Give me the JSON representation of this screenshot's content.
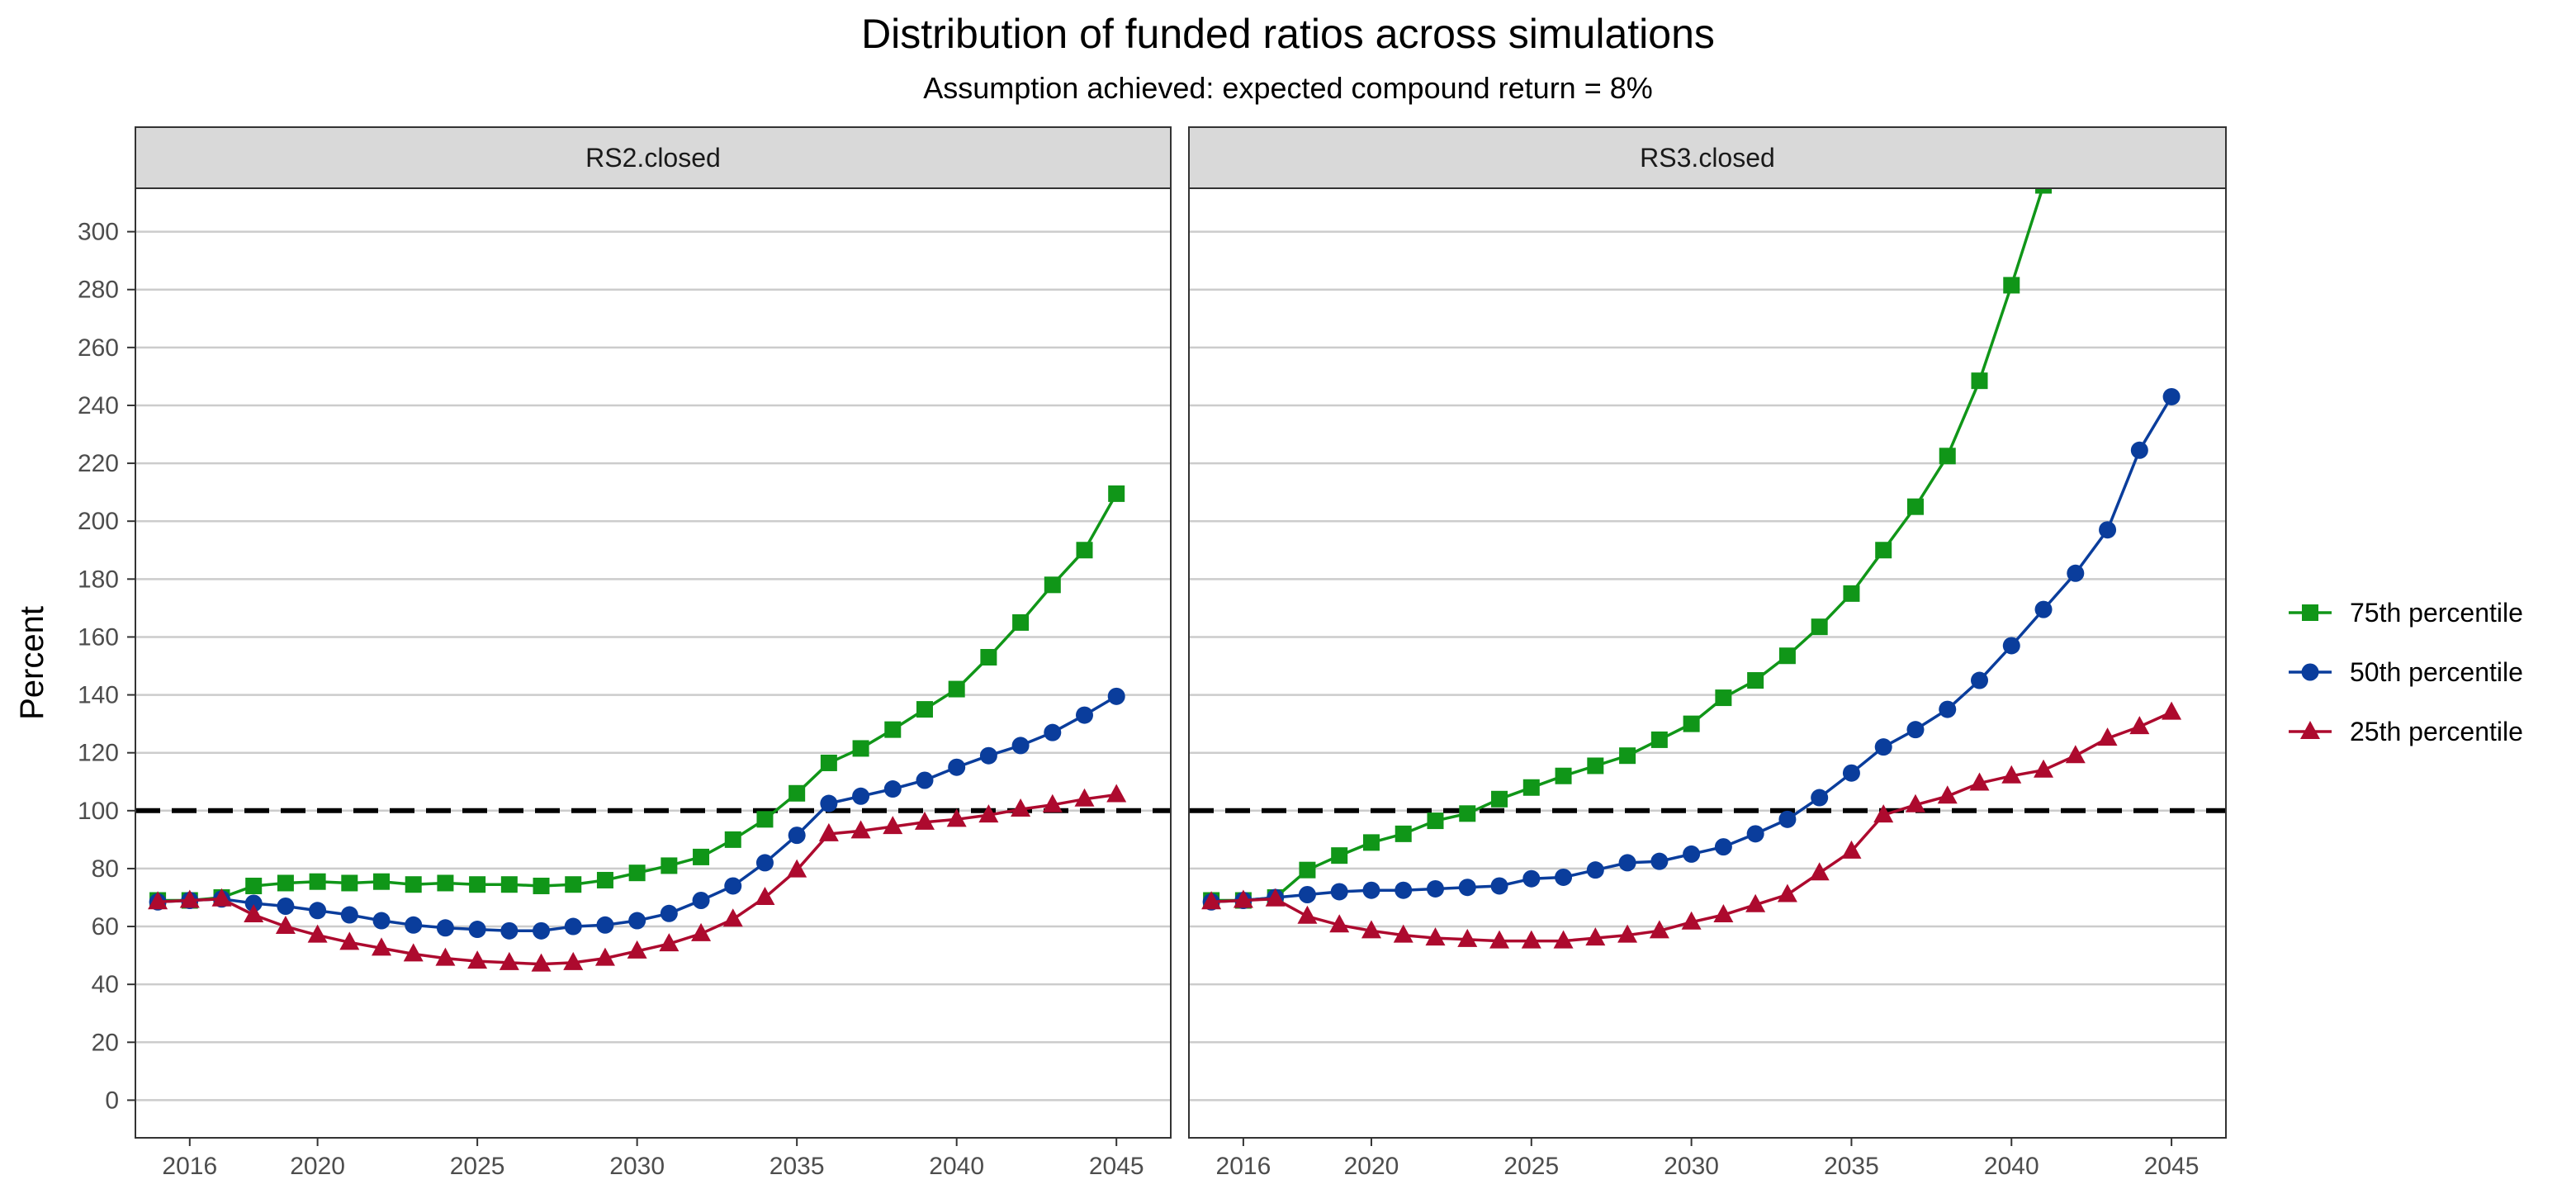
{
  "chart_data": {
    "type": "line",
    "title": "Distribution of funded ratios across simulations",
    "subtitle": "Assumption achieved: expected compound return = 8%",
    "ylabel": "Percent",
    "xlabel": "",
    "ylim": [
      -13,
      315
    ],
    "xlim": [
      2014.3,
      2046.7
    ],
    "yticks": [
      0,
      20,
      40,
      60,
      80,
      100,
      120,
      140,
      160,
      180,
      200,
      220,
      240,
      260,
      280,
      300
    ],
    "xticks": [
      2016,
      2020,
      2025,
      2030,
      2035,
      2040,
      2045
    ],
    "reference_line": 100,
    "grid": "horizontal",
    "legend_position": "right",
    "colors": {
      "75th percentile": "#109618",
      "50th percentile": "#0a3d9c",
      "25th percentile": "#ad0a2e"
    },
    "markers": {
      "75th percentile": "square",
      "50th percentile": "circle",
      "25th percentile": "triangle"
    },
    "legend": [
      "75th percentile",
      "50th percentile",
      "25th percentile"
    ],
    "x": [
      2015,
      2016,
      2017,
      2018,
      2019,
      2020,
      2021,
      2022,
      2023,
      2024,
      2025,
      2026,
      2027,
      2028,
      2029,
      2030,
      2031,
      2032,
      2033,
      2034,
      2035,
      2036,
      2037,
      2038,
      2039,
      2040,
      2041,
      2042,
      2043,
      2044,
      2045
    ],
    "panels": [
      {
        "strip": "RS2.closed",
        "series": [
          {
            "name": "75th percentile",
            "values": [
              69,
              69,
              70,
              74,
              75,
              75.5,
              75,
              75.5,
              74.5,
              75,
              74.5,
              74.5,
              74,
              74.5,
              76,
              78.5,
              81,
              84,
              90,
              97,
              106,
              116.5,
              121.5,
              128,
              135,
              142,
              153,
              165,
              178,
              190,
              209.5
            ]
          },
          {
            "name": "50th percentile",
            "values": [
              68.5,
              69,
              69.5,
              68,
              67,
              65.5,
              64,
              62,
              60.5,
              59.5,
              59,
              58.5,
              58.5,
              60,
              60.5,
              62,
              64.5,
              69,
              74,
              82,
              91.5,
              102.5,
              105,
              107.5,
              110.5,
              115,
              119,
              122.5,
              127,
              133,
              139.5
            ]
          },
          {
            "name": "25th percentile",
            "values": [
              68.5,
              69,
              69.5,
              64,
              60,
              57,
              54.5,
              52.5,
              50.5,
              49,
              48,
              47.5,
              47,
              47.5,
              49,
              51.5,
              54,
              57.5,
              62.5,
              70,
              79.5,
              92,
              93,
              94.5,
              96,
              97,
              98.5,
              100.5,
              102,
              104,
              105.5
            ]
          }
        ]
      },
      {
        "strip": "RS3.closed",
        "series": [
          {
            "name": "75th percentile",
            "values": [
              69,
              69,
              70,
              79.5,
              84.5,
              89,
              92,
              96.5,
              99,
              104,
              108,
              112,
              115.5,
              119,
              124.5,
              130,
              139,
              145,
              153.5,
              163.5,
              175,
              190,
              205,
              222.5,
              248.5,
              281.5,
              316,
              null,
              null,
              null,
              null
            ]
          },
          {
            "name": "50th percentile",
            "values": [
              68.5,
              69,
              70,
              71,
              72,
              72.5,
              72.5,
              73,
              73.5,
              74,
              76.5,
              77,
              79.5,
              82,
              82.5,
              85,
              87.5,
              92,
              97,
              104.5,
              113,
              122,
              128,
              135,
              145,
              157,
              169.5,
              182,
              197,
              224.5,
              243
            ]
          },
          {
            "name": "25th percentile",
            "values": [
              68.5,
              69,
              69.5,
              63.5,
              60.5,
              58.5,
              57,
              56,
              55.5,
              55,
              55,
              55,
              56,
              57,
              58.5,
              61.5,
              64,
              67.5,
              71,
              78.5,
              86,
              98.5,
              102,
              105,
              109.5,
              112,
              114,
              119,
              125,
              129,
              134
            ]
          }
        ]
      }
    ]
  }
}
